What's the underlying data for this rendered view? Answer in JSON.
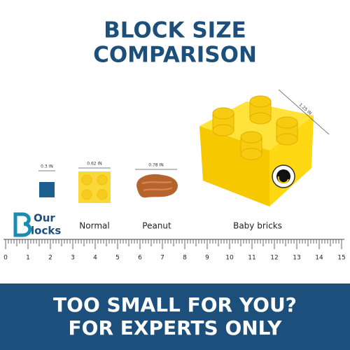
{
  "title": [
    "BLOCK SIZE",
    "COMPARISON"
  ],
  "items": [
    {
      "size": "0.3 IN"
    },
    {
      "size": "0.62 IN",
      "caption": "Normal"
    },
    {
      "size": "0.78 IN",
      "caption": "Peanut"
    },
    {
      "size": "1.25 IN",
      "caption": "Baby bricks"
    }
  ],
  "logo": {
    "line1": "Our",
    "line2": "locks"
  },
  "ruler": [
    0,
    1,
    2,
    3,
    4,
    5,
    6,
    7,
    8,
    9,
    10,
    11,
    12,
    13,
    14,
    15
  ],
  "footer": [
    "TOO SMALL FOR YOU?",
    "FOR EXPERTS ONLY"
  ]
}
